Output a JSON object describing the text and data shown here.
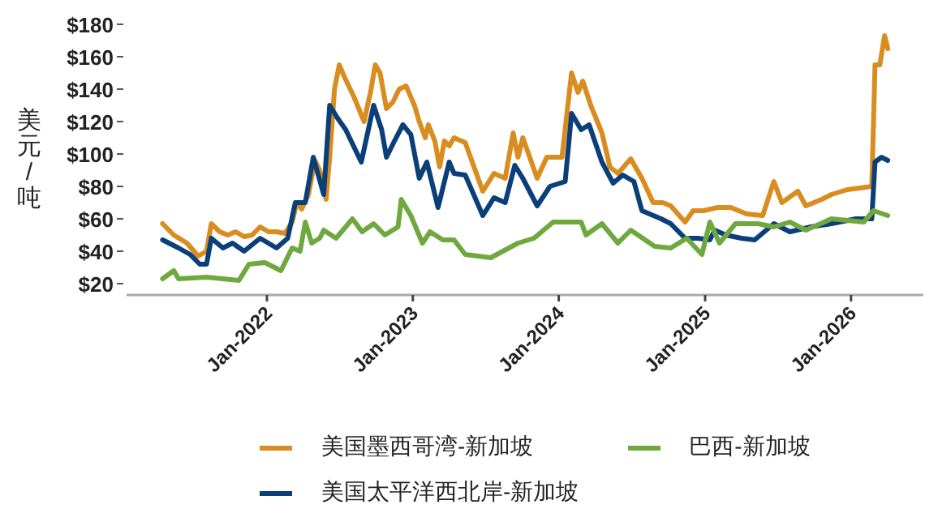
{
  "chart_data": {
    "type": "line",
    "ylabel": "美元/吨",
    "legend": "bottom",
    "xlim": [
      "2021-01-15",
      "2026-07-01"
    ],
    "xticks": [
      {
        "value": "2022-01-01",
        "label": "Jan-2022"
      },
      {
        "value": "2023-01-01",
        "label": "Jan-2023"
      },
      {
        "value": "2024-01-01",
        "label": "Jan-2024"
      },
      {
        "value": "2025-01-01",
        "label": "Jan-2025"
      },
      {
        "value": "2026-01-01",
        "label": "Jan-2026"
      }
    ],
    "ylim": [
      13,
      180
    ],
    "yticks": [
      {
        "value": 20,
        "label": "$20"
      },
      {
        "value": 40,
        "label": "$40"
      },
      {
        "value": 60,
        "label": "$60"
      },
      {
        "value": 80,
        "label": "$80"
      },
      {
        "value": 100,
        "label": "$100"
      },
      {
        "value": 120,
        "label": "$120"
      },
      {
        "value": 140,
        "label": "$140"
      },
      {
        "value": 160,
        "label": "$160"
      },
      {
        "value": 180,
        "label": "$180"
      }
    ],
    "series": [
      {
        "name": "美国墨西哥湾-新加坡",
        "color": "#d98c1f",
        "x": [
          "2021-04-15",
          "2021-05-13",
          "2021-06-15",
          "2021-07-13",
          "2021-08-03",
          "2021-08-15",
          "2021-09-05",
          "2021-09-25",
          "2021-10-15",
          "2021-11-05",
          "2021-11-25",
          "2021-12-15",
          "2022-01-05",
          "2022-01-25",
          "2022-02-15",
          "2022-03-05",
          "2022-03-17",
          "2022-03-29",
          "2022-04-15",
          "2022-05-01",
          "2022-05-13",
          "2022-05-29",
          "2022-06-07",
          "2022-06-19",
          "2022-07-01",
          "2022-07-13",
          "2022-08-07",
          "2022-09-01",
          "2022-09-17",
          "2022-09-29",
          "2022-10-11",
          "2022-10-27",
          "2022-11-12",
          "2022-11-28",
          "2022-12-15",
          "2023-01-05",
          "2023-01-17",
          "2023-02-01",
          "2023-02-09",
          "2023-02-25",
          "2023-03-09",
          "2023-03-21",
          "2023-04-02",
          "2023-04-14",
          "2023-05-12",
          "2023-06-25",
          "2023-07-23",
          "2023-08-20",
          "2023-09-09",
          "2023-09-21",
          "2023-10-03",
          "2023-11-08",
          "2023-12-02",
          "2024-01-09",
          "2024-02-02",
          "2024-02-18",
          "2024-03-01",
          "2024-03-21",
          "2024-04-18",
          "2024-05-08",
          "2024-05-28",
          "2024-06-29",
          "2024-07-27",
          "2024-08-24",
          "2024-09-17",
          "2024-10-07",
          "2024-11-12",
          "2024-12-02",
          "2024-12-28",
          "2025-02-02",
          "2025-03-06",
          "2025-04-15",
          "2025-05-25",
          "2025-06-22",
          "2025-07-12",
          "2025-08-21",
          "2025-09-10",
          "2025-10-20",
          "2025-11-13",
          "2025-12-23",
          "2026-02-22",
          "2026-03-02",
          "2026-03-14",
          "2026-03-26",
          "2026-04-03"
        ],
        "values": [
          57,
          50,
          45,
          37,
          40,
          57,
          52,
          50,
          52,
          49,
          50,
          55,
          52,
          52,
          51,
          58,
          70,
          66,
          75,
          96,
          90,
          72,
          98,
          140,
          155,
          148,
          135,
          120,
          138,
          155,
          150,
          128,
          132,
          140,
          142,
          130,
          120,
          110,
          118,
          108,
          92,
          108,
          105,
          110,
          107,
          77,
          88,
          85,
          113,
          98,
          110,
          85,
          98,
          98,
          150,
          138,
          145,
          130,
          113,
          92,
          88,
          97,
          85,
          70,
          70,
          68,
          58,
          65,
          65,
          67,
          67,
          63,
          62,
          83,
          70,
          77,
          68,
          72,
          75,
          78,
          80,
          155,
          155,
          173,
          165
        ]
      },
      {
        "name": "美国太平洋西北岸-新加坡",
        "color": "#0b3f7a",
        "x": [
          "2021-04-15",
          "2021-05-25",
          "2021-06-23",
          "2021-07-17",
          "2021-08-03",
          "2021-08-15",
          "2021-09-13",
          "2021-10-07",
          "2021-11-05",
          "2021-12-15",
          "2022-01-25",
          "2022-02-22",
          "2022-03-13",
          "2022-04-07",
          "2022-04-27",
          "2022-05-23",
          "2022-06-07",
          "2022-06-27",
          "2022-07-17",
          "2022-08-25",
          "2022-09-25",
          "2022-10-15",
          "2022-10-27",
          "2022-11-16",
          "2022-12-07",
          "2022-12-27",
          "2023-01-17",
          "2023-02-05",
          "2023-03-05",
          "2023-04-02",
          "2023-04-14",
          "2023-05-12",
          "2023-06-25",
          "2023-07-23",
          "2023-08-20",
          "2023-09-13",
          "2023-10-03",
          "2023-11-08",
          "2023-12-10",
          "2024-01-17",
          "2024-02-02",
          "2024-02-26",
          "2024-03-17",
          "2024-04-18",
          "2024-05-16",
          "2024-06-09",
          "2024-07-07",
          "2024-07-27",
          "2024-09-13",
          "2024-10-07",
          "2024-11-12",
          "2024-12-14",
          "2025-01-13",
          "2025-01-25",
          "2025-02-22",
          "2025-04-02",
          "2025-05-05",
          "2025-06-22",
          "2025-08-01",
          "2025-09-22",
          "2025-11-13",
          "2026-01-13",
          "2026-02-22",
          "2026-03-02",
          "2026-03-18",
          "2026-04-03"
        ],
        "values": [
          47,
          42,
          38,
          32,
          32,
          48,
          42,
          45,
          40,
          48,
          42,
          48,
          70,
          70,
          98,
          75,
          130,
          122,
          115,
          95,
          130,
          115,
          98,
          108,
          118,
          112,
          85,
          95,
          67,
          95,
          88,
          87,
          62,
          73,
          70,
          93,
          85,
          68,
          80,
          83,
          125,
          115,
          118,
          95,
          82,
          87,
          83,
          65,
          60,
          57,
          48,
          48,
          47,
          53,
          50,
          48,
          47,
          57,
          52,
          55,
          57,
          60,
          60,
          95,
          98,
          96
        ]
      },
      {
        "name": "巴西-新加坡",
        "color": "#70a840",
        "x": [
          "2021-04-15",
          "2021-05-13",
          "2021-05-25",
          "2021-08-03",
          "2021-10-23",
          "2021-11-17",
          "2021-12-27",
          "2022-02-05",
          "2022-03-05",
          "2022-03-25",
          "2022-04-07",
          "2022-04-23",
          "2022-05-13",
          "2022-05-23",
          "2022-06-23",
          "2022-08-03",
          "2022-08-27",
          "2022-09-25",
          "2022-10-23",
          "2022-11-25",
          "2022-12-03",
          "2022-12-27",
          "2023-01-25",
          "2023-02-13",
          "2023-03-17",
          "2023-04-14",
          "2023-05-12",
          "2023-07-15",
          "2023-09-21",
          "2023-10-31",
          "2023-12-18",
          "2024-02-26",
          "2024-03-09",
          "2024-04-18",
          "2024-05-28",
          "2024-06-29",
          "2024-08-28",
          "2024-10-07",
          "2024-11-16",
          "2024-12-24",
          "2025-01-13",
          "2025-02-06",
          "2025-03-18",
          "2025-05-13",
          "2025-06-22",
          "2025-08-01",
          "2025-09-10",
          "2025-11-13",
          "2026-02-02",
          "2026-02-26",
          "2026-04-03"
        ],
        "values": [
          23,
          28,
          23,
          24,
          22,
          32,
          33,
          28,
          42,
          40,
          58,
          45,
          48,
          53,
          48,
          60,
          52,
          57,
          50,
          55,
          72,
          62,
          45,
          52,
          47,
          47,
          38,
          36,
          45,
          48,
          58,
          58,
          50,
          57,
          45,
          53,
          43,
          42,
          48,
          38,
          58,
          45,
          57,
          57,
          55,
          58,
          53,
          60,
          58,
          65,
          62
        ]
      }
    ]
  }
}
